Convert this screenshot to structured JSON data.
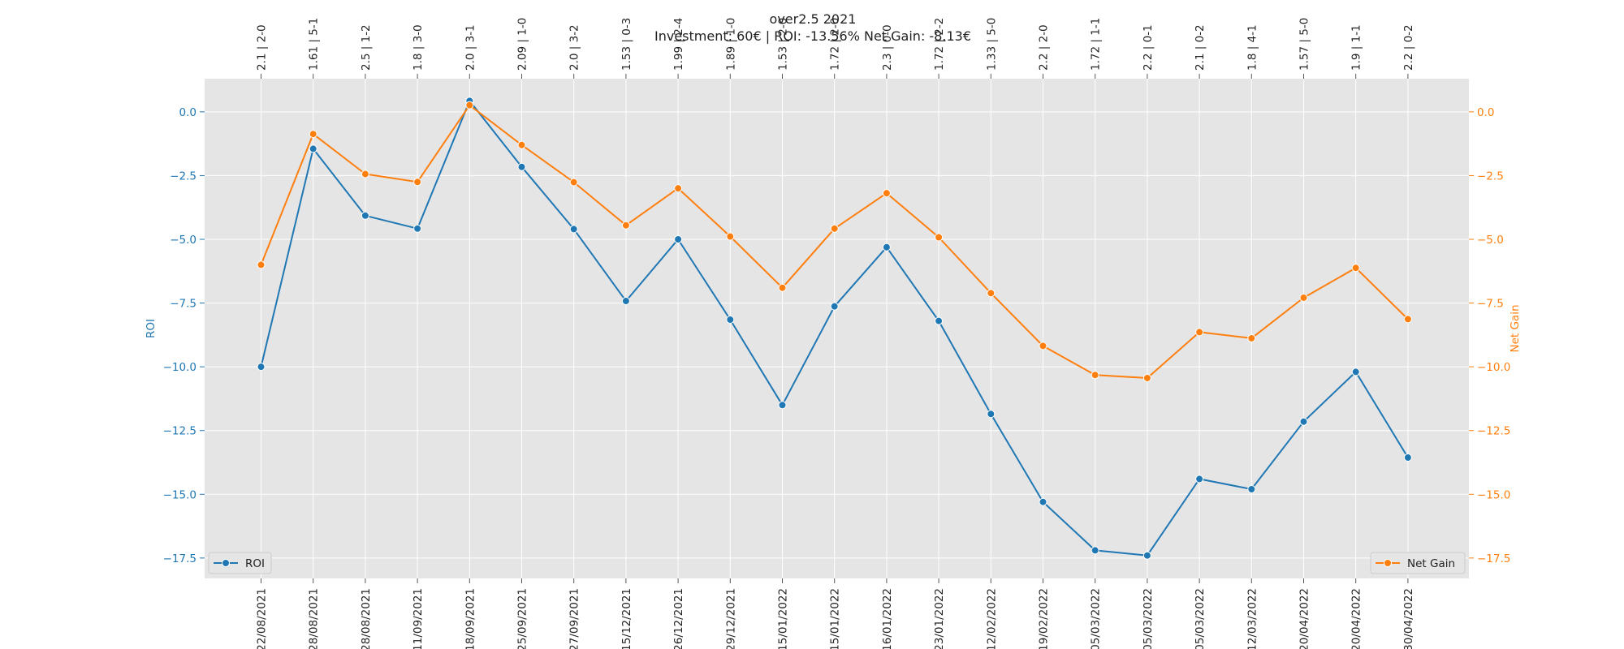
{
  "chart_data": {
    "type": "line",
    "title": "over2.5 2021",
    "subtitle": "Investment: 60€ | ROI: -13.56% Net Gain: -8.13€",
    "x": [
      "22/08/2021",
      "28/08/2021",
      "28/08/2021",
      "11/09/2021",
      "18/09/2021",
      "25/09/2021",
      "27/09/2021",
      "15/12/2021",
      "26/12/2021",
      "29/12/2021",
      "15/01/2022",
      "15/01/2022",
      "16/01/2022",
      "23/01/2022",
      "12/02/2022",
      "19/02/2022",
      "05/03/2022",
      "05/03/2022",
      "05/03/2022",
      "12/03/2022",
      "20/04/2022",
      "20/04/2022",
      "30/04/2022"
    ],
    "top_labels": [
      "2.1 | 2-0",
      "1.61 | 5-1",
      "2.5 | 1-2",
      "1.8 | 3-0",
      "2.0 | 3-1",
      "2.09 | 1-0",
      "2.0 | 3-2",
      "1.53 | 0-3",
      "1.99 | 2-4",
      "1.89 | 1-0",
      "1.53 | 2-0",
      "1.72 | 2-0",
      "2.3 | 0-0",
      "1.72 | 2-2",
      "1.33 | 5-0",
      "2.2 | 2-0",
      "1.72 | 1-1",
      "2.2 | 0-1",
      "2.1 | 0-2",
      "1.8 | 4-1",
      "1.57 | 5-0",
      "1.9 | 1-1",
      "2.2 | 0-2"
    ],
    "series": [
      {
        "name": "ROI",
        "axis": "left",
        "color": "#1f77b4",
        "values": [
          -10.0,
          -1.45,
          -4.07,
          -4.58,
          0.43,
          -2.16,
          -4.6,
          -7.42,
          -5.0,
          -8.15,
          -11.5,
          -7.63,
          -5.31,
          -8.2,
          -11.85,
          -15.3,
          -17.2,
          -17.4,
          -14.4,
          -14.8,
          -12.15,
          -10.2,
          -13.56
        ]
      },
      {
        "name": "Net Gain",
        "axis": "right",
        "color": "#ff7f0e",
        "values": [
          -6.0,
          -0.87,
          -2.44,
          -2.75,
          0.26,
          -1.3,
          -2.76,
          -4.45,
          -3.0,
          -4.89,
          -6.9,
          -4.58,
          -3.19,
          -4.92,
          -7.11,
          -9.18,
          -10.32,
          -10.44,
          -8.64,
          -8.88,
          -7.29,
          -6.12,
          -8.13
        ]
      }
    ],
    "ylabel": "ROI",
    "ylabel_right": "Net Gain",
    "ylim": [
      -18.3,
      1.3
    ],
    "yticks": [
      0.0,
      -2.5,
      -5.0,
      -7.5,
      -10.0,
      -12.5,
      -15.0,
      -17.5
    ],
    "ytick_labels": [
      "0.0",
      "−2.5",
      "−5.0",
      "−7.5",
      "−10.0",
      "−12.5",
      "−15.0",
      "−17.5"
    ],
    "grid": true,
    "legend": [
      {
        "name": "ROI",
        "placement": "lower-left"
      },
      {
        "name": "Net Gain",
        "placement": "lower-right"
      }
    ]
  }
}
